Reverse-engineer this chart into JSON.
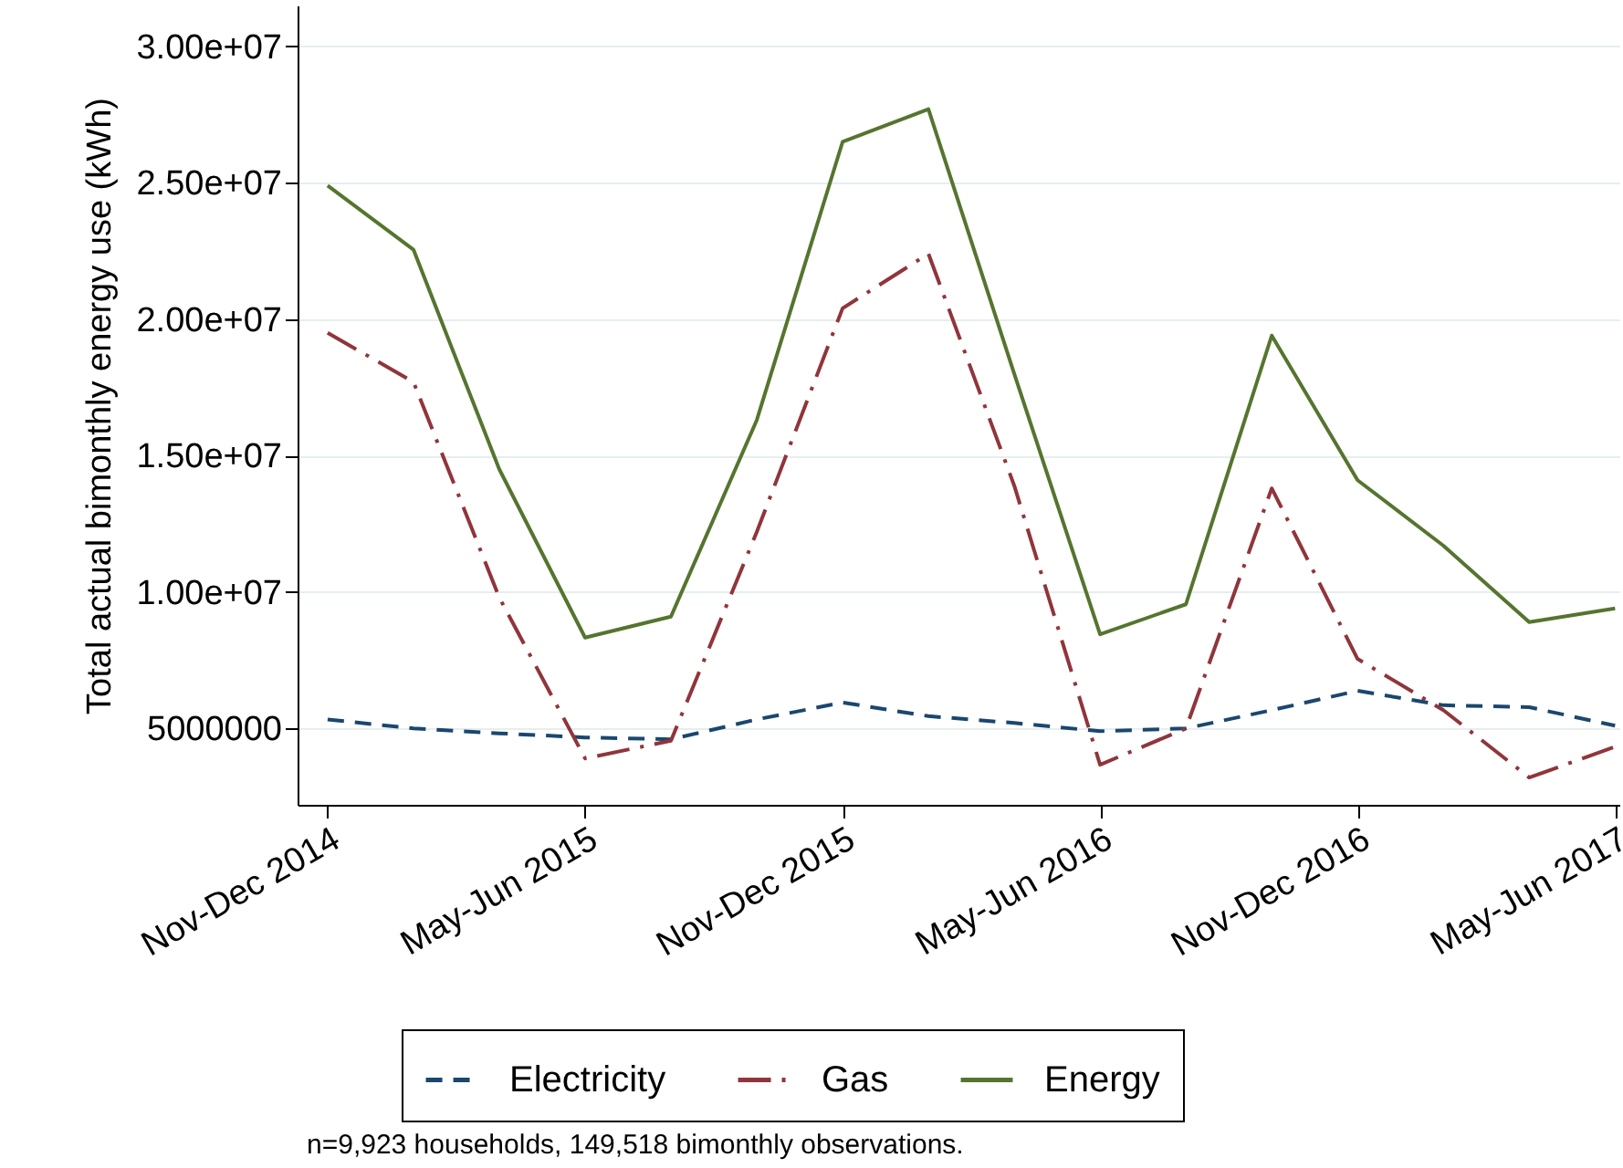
{
  "chart_data": {
    "type": "line",
    "ylabel": "Total actual bimonthly energy use (kWh)",
    "categories": [
      "Nov-Dec 2014",
      null,
      null,
      "May-Jun 2015",
      null,
      null,
      "Nov-Dec 2015",
      null,
      null,
      "May-Jun 2016",
      null,
      null,
      "Nov-Dec 2016",
      null,
      null,
      "May-Jun 2017"
    ],
    "series": [
      {
        "name": "Electricity",
        "color": "#1a476f",
        "line_style": "dashed",
        "values": [
          5330000,
          5000000,
          4820000,
          4670000,
          4600000,
          5330000,
          5950000,
          5450000,
          5200000,
          4900000,
          5000000,
          5670000,
          6380000,
          5850000,
          5780000,
          5100000
        ]
      },
      {
        "name": "Gas",
        "color": "#90353b",
        "line_style": "dashdot",
        "values": [
          19500000,
          17700000,
          9800000,
          3900000,
          4550000,
          12200000,
          20400000,
          22400000,
          13900000,
          3670000,
          5000000,
          13800000,
          7550000,
          5670000,
          3200000,
          4330000
        ]
      },
      {
        "name": "Energy",
        "color": "#55752f",
        "line_style": "solid",
        "values": [
          24900000,
          22550000,
          14500000,
          8330000,
          9100000,
          16300000,
          26500000,
          27700000,
          18000000,
          8450000,
          9550000,
          19400000,
          14100000,
          11700000,
          8900000,
          9400000
        ]
      }
    ],
    "ylim": [
      2200000,
      31500000
    ],
    "yticks": [
      {
        "value": 5000000,
        "label": "5000000"
      },
      {
        "value": 10000000,
        "label": "1.00e+07"
      },
      {
        "value": 15000000,
        "label": "1.50e+07"
      },
      {
        "value": 20000000,
        "label": "2.00e+07"
      },
      {
        "value": 25000000,
        "label": "2.50e+07"
      },
      {
        "value": 30000000,
        "label": "3.00e+07"
      }
    ],
    "grid": "y",
    "legend": "bottom",
    "annotations": [
      "n=9,923 households, 149,518 bimonthly observations."
    ]
  }
}
